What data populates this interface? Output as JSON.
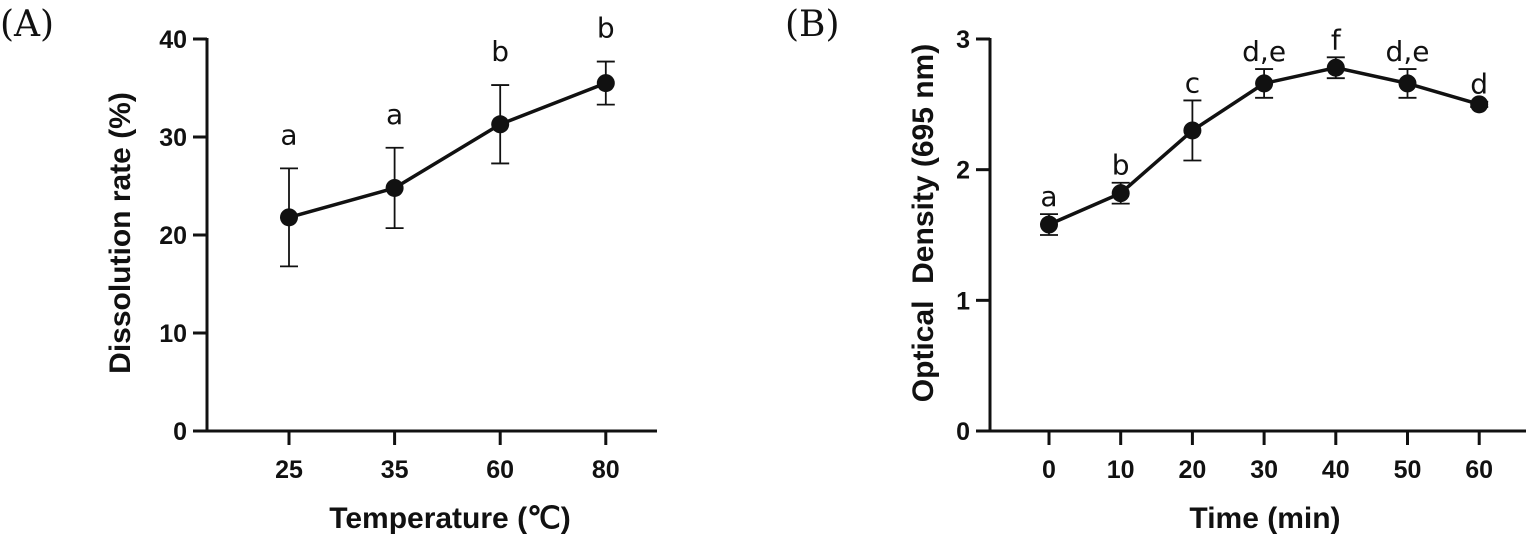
{
  "colors": {
    "ink": "#111111",
    "background": "#ffffff"
  },
  "chart_data": [
    {
      "panel": "(A)",
      "type": "line",
      "title": "",
      "xlabel": "Temperature (℃)",
      "ylabel": "Dissolution rate (%)",
      "categories": [
        "25",
        "35",
        "60",
        "80"
      ],
      "values": [
        21.8,
        24.8,
        31.3,
        35.5
      ],
      "error": [
        5.0,
        4.1,
        4.0,
        2.2
      ],
      "significance": [
        "a",
        "a",
        "b",
        "b"
      ],
      "ylim": [
        0,
        40
      ],
      "yticks": [
        0,
        10,
        20,
        30,
        40
      ],
      "ytick_labels": [
        "0",
        "10",
        "20",
        "30",
        "40"
      ],
      "grid": false,
      "legend": "none"
    },
    {
      "panel": "(B)",
      "type": "line",
      "title": "",
      "xlabel": "Time (min)",
      "ylabel": "Optical  Density (695 nm)",
      "categories": [
        "0",
        "10",
        "20",
        "30",
        "40",
        "50",
        "60"
      ],
      "values": [
        1.58,
        1.82,
        2.3,
        2.66,
        2.78,
        2.66,
        2.5
      ],
      "error": [
        0.08,
        0.08,
        0.23,
        0.11,
        0.08,
        0.11,
        0.02
      ],
      "significance": [
        "a",
        "b",
        "c",
        "d,e",
        "f",
        "d,e",
        "d"
      ],
      "ylim": [
        0,
        3
      ],
      "yticks": [
        0,
        1,
        2,
        3
      ],
      "ytick_labels": [
        "0",
        "1",
        "2",
        "3"
      ],
      "grid": false,
      "legend": "none"
    }
  ]
}
